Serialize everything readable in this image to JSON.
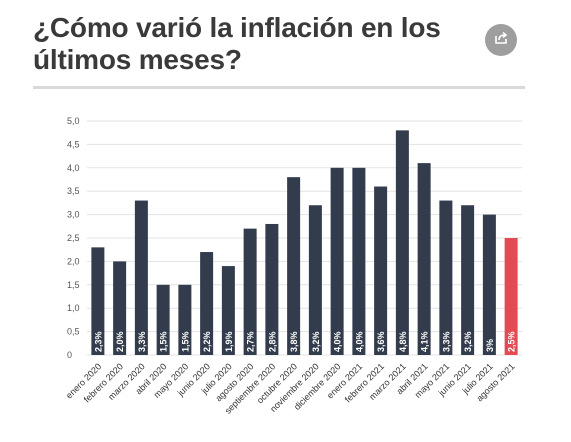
{
  "title": "¿Cómo varió la inflación en los últimos meses?",
  "share_icon": "share-icon",
  "colors": {
    "bar": "#333c4d",
    "highlight": "#e24b54",
    "grid": "#e3e3e3",
    "title": "#3a3a3a",
    "label": "#ffffff"
  },
  "chart_data": {
    "type": "bar",
    "title": "",
    "xlabel": "",
    "ylabel": "",
    "ylim": [
      0,
      5
    ],
    "yticks": [
      0,
      0.5,
      1,
      1.5,
      2,
      2.5,
      3,
      3.5,
      4,
      4.5,
      5
    ],
    "ytick_labels": [
      "0",
      "0,5",
      "1,0",
      "1,5",
      "2,0",
      "2,5",
      "3,0",
      "3,5",
      "4,0",
      "4,5",
      "5,0"
    ],
    "grid": true,
    "categories": [
      "enero 2020",
      "febrero 2020",
      "marzo 2020",
      "abril 2020",
      "mayo 2020",
      "junio 2020",
      "julio 2020",
      "agosto 2020",
      "septiembre 2020",
      "octubre 2020",
      "noviembre 2020",
      "diciembre 2020",
      "enero 2021",
      "febrero 2021",
      "marzo 2021",
      "abril 2021",
      "mayo 2021",
      "junio 2021",
      "julio 2021",
      "agosto 2021"
    ],
    "values": [
      2.3,
      2.0,
      3.3,
      1.5,
      1.5,
      2.2,
      1.9,
      2.7,
      2.8,
      3.8,
      3.2,
      4.0,
      4.0,
      3.6,
      4.8,
      4.1,
      3.3,
      3.2,
      3.0,
      2.5
    ],
    "data_labels": [
      "2,3%",
      "2,0%",
      "3,3%",
      "1,5%",
      "1,5%",
      "2,2%",
      "1,9%",
      "2,7%",
      "2,8%",
      "3,8%",
      "3,2%",
      "4,0%",
      "4,0%",
      "3,6%",
      "4,8%",
      "4,1%",
      "3,3%",
      "3,2%",
      "3%",
      "2,5%"
    ],
    "highlight_index": 19
  }
}
